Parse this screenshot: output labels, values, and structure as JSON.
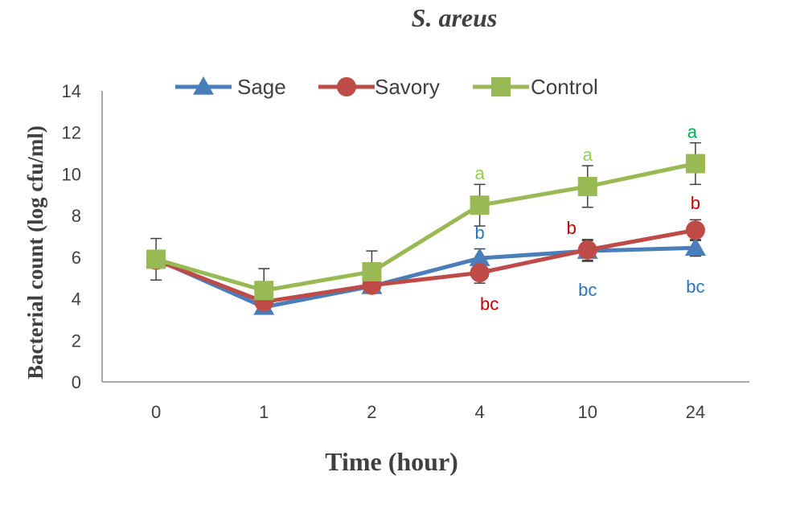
{
  "chart_data": {
    "type": "line",
    "title": "S. areus",
    "xlabel": "Time (hour)",
    "ylabel": "Bacterial count (log cfu/ml)",
    "categories": [
      "0",
      "1",
      "2",
      "4",
      "10",
      "24"
    ],
    "ylim": [
      0,
      14
    ],
    "yticks": [
      0,
      2,
      4,
      6,
      8,
      10,
      12,
      14
    ],
    "grid": false,
    "legend_position": "top",
    "series": [
      {
        "name": "Sage",
        "color": "#4a7ebb",
        "marker": "triangle",
        "values": [
          5.9,
          3.6,
          4.6,
          5.95,
          6.3,
          6.45
        ],
        "errors": [
          0,
          0,
          0,
          0.45,
          0.5,
          0.4
        ],
        "labels": [
          "",
          "",
          "",
          "b",
          "bc",
          "bc"
        ]
      },
      {
        "name": "Savory",
        "color": "#be4b48",
        "marker": "circle",
        "values": [
          5.85,
          3.85,
          4.65,
          5.25,
          6.35,
          7.3
        ],
        "errors": [
          0,
          0,
          0,
          0.5,
          0.5,
          0.5
        ],
        "labels": [
          "",
          "",
          "",
          "bc",
          "b",
          "b"
        ]
      },
      {
        "name": "Control",
        "color": "#98b954",
        "marker": "square",
        "values": [
          5.9,
          4.4,
          5.3,
          8.5,
          9.4,
          10.5
        ],
        "errors": [
          1.0,
          1.05,
          1.0,
          1.0,
          1.0,
          1.0
        ],
        "labels": [
          "",
          "",
          "",
          "a",
          "a",
          "a"
        ]
      }
    ]
  }
}
